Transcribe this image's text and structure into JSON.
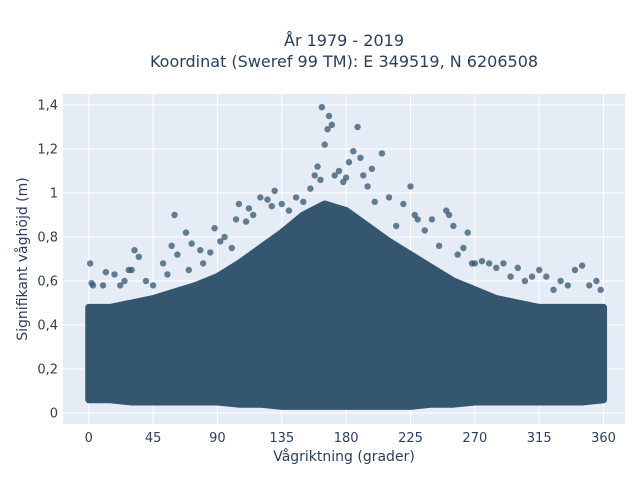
{
  "chart_data": {
    "type": "scatter",
    "title_line1": "År 1979 - 2019",
    "title_line2": "Koordinat (Sweref 99 TM): E 349519, N 6206508",
    "xlabel": "Vågriktning (grader)",
    "ylabel": "Signifikant våghöjd (m)",
    "xlim": [
      -18,
      375
    ],
    "ylim": [
      -0.05,
      1.45
    ],
    "xticks": [
      0,
      45,
      90,
      135,
      180,
      225,
      270,
      315,
      360
    ],
    "xtick_labels": [
      "0",
      "45",
      "90",
      "135",
      "180",
      "225",
      "270",
      "315",
      "360"
    ],
    "yticks": [
      0,
      0.2,
      0.4,
      0.6,
      0.8,
      1.0,
      1.2,
      1.4
    ],
    "ytick_labels": [
      "0",
      "0,2",
      "0,4",
      "0,6",
      "0,8",
      "1",
      "1,2",
      "1,4"
    ],
    "grid": true,
    "marker_color": "#34566e",
    "envelope": {
      "x": [
        0,
        15,
        30,
        45,
        60,
        75,
        90,
        105,
        120,
        135,
        150,
        165,
        180,
        195,
        210,
        225,
        240,
        255,
        270,
        285,
        300,
        315,
        330,
        345,
        360
      ],
      "y_min": [
        0.06,
        0.06,
        0.05,
        0.05,
        0.05,
        0.05,
        0.05,
        0.04,
        0.04,
        0.03,
        0.03,
        0.03,
        0.03,
        0.03,
        0.03,
        0.03,
        0.04,
        0.04,
        0.05,
        0.05,
        0.05,
        0.05,
        0.05,
        0.05,
        0.06
      ],
      "y_max": [
        0.48,
        0.48,
        0.5,
        0.52,
        0.55,
        0.58,
        0.62,
        0.68,
        0.75,
        0.82,
        0.9,
        0.95,
        0.92,
        0.85,
        0.78,
        0.72,
        0.66,
        0.6,
        0.56,
        0.52,
        0.5,
        0.48,
        0.48,
        0.48,
        0.48
      ]
    },
    "series": [
      {
        "x": [
          1,
          2,
          3,
          10,
          12,
          18,
          22,
          25,
          28,
          30,
          32,
          35,
          40,
          45,
          52,
          55,
          58,
          60,
          62,
          68,
          70,
          72,
          78,
          80,
          85,
          88,
          92,
          95,
          100,
          103,
          105,
          110,
          112,
          115,
          120,
          125,
          128,
          130,
          135,
          140,
          145,
          150,
          155,
          158,
          160,
          162,
          163,
          165,
          167,
          168,
          170,
          172,
          175,
          178,
          180,
          182,
          185,
          188,
          190,
          192,
          195,
          198,
          200,
          205,
          210,
          215,
          220,
          225,
          228,
          230,
          235,
          240,
          245,
          250,
          252,
          255,
          258,
          262,
          265,
          268,
          270,
          275,
          280,
          285,
          290,
          295,
          300,
          305,
          310,
          315,
          320,
          325,
          330,
          335,
          340,
          345,
          350,
          355,
          358
        ],
        "y": [
          0.68,
          0.59,
          0.58,
          0.58,
          0.64,
          0.63,
          0.58,
          0.6,
          0.65,
          0.65,
          0.74,
          0.71,
          0.6,
          0.58,
          0.68,
          0.63,
          0.76,
          0.9,
          0.72,
          0.82,
          0.65,
          0.77,
          0.74,
          0.68,
          0.73,
          0.84,
          0.78,
          0.8,
          0.75,
          0.88,
          0.95,
          0.87,
          0.93,
          0.9,
          0.98,
          0.97,
          0.94,
          1.01,
          0.95,
          0.92,
          0.98,
          0.96,
          1.02,
          1.08,
          1.12,
          1.06,
          1.39,
          1.22,
          1.29,
          1.35,
          1.31,
          1.08,
          1.1,
          1.05,
          1.07,
          1.14,
          1.19,
          1.3,
          1.16,
          1.08,
          1.03,
          1.11,
          0.96,
          1.18,
          0.98,
          0.85,
          0.95,
          1.03,
          0.9,
          0.88,
          0.83,
          0.88,
          0.76,
          0.92,
          0.9,
          0.85,
          0.72,
          0.75,
          0.82,
          0.68,
          0.68,
          0.69,
          0.68,
          0.66,
          0.68,
          0.62,
          0.66,
          0.6,
          0.62,
          0.65,
          0.62,
          0.56,
          0.6,
          0.58,
          0.65,
          0.67,
          0.58,
          0.6,
          0.56
        ]
      }
    ]
  }
}
